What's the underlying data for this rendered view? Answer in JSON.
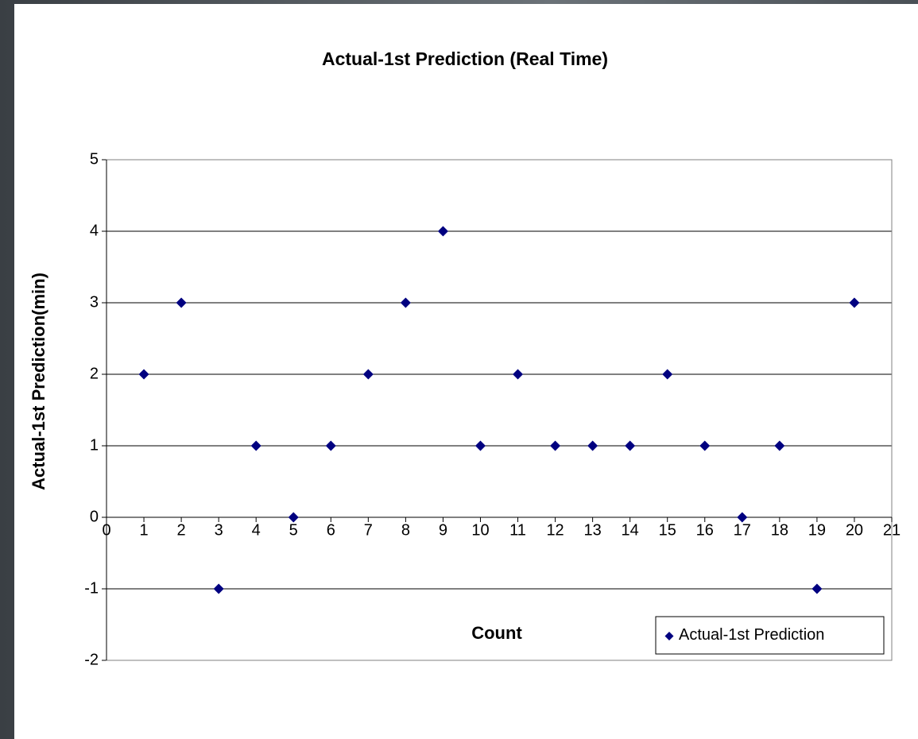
{
  "chart_data": {
    "type": "scatter",
    "title": "Actual-1st Prediction (Real Time)",
    "x_label": "Count",
    "y_label": "Actual-1st Prediction(min)",
    "x": [
      1,
      2,
      3,
      4,
      5,
      6,
      7,
      8,
      9,
      10,
      11,
      12,
      13,
      14,
      15,
      16,
      17,
      18,
      19,
      20
    ],
    "series": [
      {
        "name": "Actual-1st Prediction",
        "color": "#000080",
        "values": [
          2,
          3,
          -1,
          1,
          0,
          1,
          2,
          3,
          4,
          1,
          2,
          1,
          1,
          1,
          2,
          1,
          0,
          1,
          -1,
          3
        ]
      }
    ],
    "xlim": [
      0,
      21
    ],
    "xticks": [
      0,
      1,
      2,
      3,
      4,
      5,
      6,
      7,
      8,
      9,
      10,
      11,
      12,
      13,
      14,
      15,
      16,
      17,
      18,
      19,
      20,
      21
    ],
    "ylim": [
      -2,
      5
    ],
    "yticks": [
      -2,
      -1,
      0,
      1,
      2,
      3,
      4,
      5
    ],
    "grid": true,
    "legend": "bottom-right"
  }
}
